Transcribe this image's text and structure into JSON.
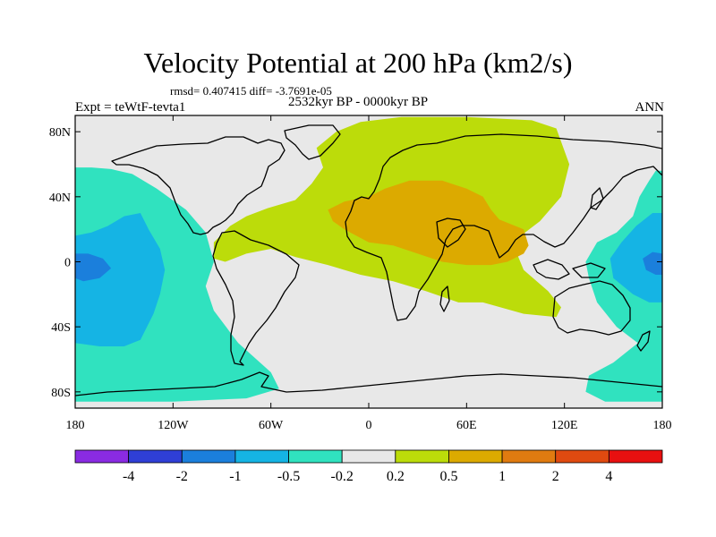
{
  "chart_data": {
    "type": "heatmap",
    "title": "Velocity Potential at 200 hPa (km2/s)",
    "stats_line": "rmsd= 0.407415 diff= -3.7691e-05",
    "period_label": "2532kyr BP - 0000kyr BP",
    "experiment_label": "Expt = teWtF-tevta1",
    "season_label": "ANN",
    "x_ticks": [
      {
        "lon": -180,
        "label": "180"
      },
      {
        "lon": -120,
        "label": "120W"
      },
      {
        "lon": -60,
        "label": "60W"
      },
      {
        "lon": 0,
        "label": "0"
      },
      {
        "lon": 60,
        "label": "60E"
      },
      {
        "lon": 120,
        "label": "120E"
      },
      {
        "lon": 180,
        "label": "180"
      }
    ],
    "y_ticks": [
      {
        "lat": 80,
        "label": "80N"
      },
      {
        "lat": 40,
        "label": "40N"
      },
      {
        "lat": 0,
        "label": "0"
      },
      {
        "lat": -40,
        "label": "40S"
      },
      {
        "lat": -80,
        "label": "80S"
      }
    ],
    "xlim": [
      -180,
      180
    ],
    "ylim": [
      -90,
      90
    ],
    "colorbar": {
      "colors": [
        "#8a2be2",
        "#2f3fd6",
        "#1b7fdc",
        "#15b4e4",
        "#30e2bf",
        "#e8e8e8",
        "#bcdc0a",
        "#dcaa00",
        "#e07b10",
        "#e04a10",
        "#e81010"
      ],
      "levels": [
        {
          "value": "-4",
          "index": 1
        },
        {
          "value": "-2",
          "index": 2
        },
        {
          "value": "-1",
          "index": 3
        },
        {
          "value": "-0.5",
          "index": 4
        },
        {
          "value": "-0.2",
          "index": 5
        },
        {
          "value": "0.2",
          "index": 6
        },
        {
          "value": "0.5",
          "index": 7
        },
        {
          "value": "1",
          "index": 8
        },
        {
          "value": "2",
          "index": 9
        },
        {
          "value": "4",
          "index": 10
        }
      ]
    },
    "regions": [
      {
        "level": "0.2 to 0.5",
        "color": "#bcdc0a",
        "pts": [
          [
            -95,
            2
          ],
          [
            -95,
            12
          ],
          [
            -85,
            22
          ],
          [
            -75,
            28
          ],
          [
            -62,
            33
          ],
          [
            -45,
            38
          ],
          [
            -35,
            48
          ],
          [
            -28,
            58
          ],
          [
            -32,
            70
          ],
          [
            -20,
            80
          ],
          [
            -5,
            86
          ],
          [
            20,
            89
          ],
          [
            60,
            89
          ],
          [
            100,
            87
          ],
          [
            115,
            82
          ],
          [
            123,
            60
          ],
          [
            118,
            40
          ],
          [
            105,
            25
          ],
          [
            88,
            12
          ],
          [
            95,
            -5
          ],
          [
            110,
            -18
          ],
          [
            118,
            -28
          ],
          [
            115,
            -34
          ],
          [
            95,
            -32
          ],
          [
            70,
            -25
          ],
          [
            55,
            -25
          ],
          [
            35,
            -18
          ],
          [
            15,
            -12
          ],
          [
            -5,
            -8
          ],
          [
            -25,
            -2
          ],
          [
            -45,
            3
          ],
          [
            -60,
            8
          ],
          [
            -75,
            5
          ],
          [
            -88,
            0
          ]
        ]
      },
      {
        "level": "0.5 to 1",
        "color": "#dcaa00",
        "pts": [
          [
            -25,
            32
          ],
          [
            -15,
            37
          ],
          [
            0,
            40
          ],
          [
            10,
            45
          ],
          [
            25,
            50
          ],
          [
            45,
            50
          ],
          [
            60,
            45
          ],
          [
            70,
            40
          ],
          [
            75,
            32
          ],
          [
            80,
            26
          ],
          [
            95,
            20
          ],
          [
            98,
            10
          ],
          [
            95,
            5
          ],
          [
            85,
            0
          ],
          [
            75,
            -2
          ],
          [
            60,
            -2
          ],
          [
            45,
            0
          ],
          [
            30,
            5
          ],
          [
            15,
            10
          ],
          [
            0,
            12
          ],
          [
            -15,
            20
          ],
          [
            -22,
            25
          ]
        ]
      },
      {
        "level": "-0.5 to -0.2",
        "color": "#30e2bf",
        "pts": [
          [
            -180,
            58
          ],
          [
            -170,
            58
          ],
          [
            -158,
            57
          ],
          [
            -145,
            54
          ],
          [
            -130,
            45
          ],
          [
            -112,
            32
          ],
          [
            -100,
            18
          ],
          [
            -95,
            0
          ],
          [
            -100,
            -15
          ],
          [
            -95,
            -30
          ],
          [
            -80,
            -50
          ],
          [
            -60,
            -68
          ],
          [
            -55,
            -78
          ],
          [
            -75,
            -84
          ],
          [
            -120,
            -86
          ],
          [
            -170,
            -86
          ],
          [
            -180,
            -86
          ]
        ]
      },
      {
        "level": "-1 to -0.5",
        "color": "#15b4e4",
        "pts": [
          [
            -180,
            16
          ],
          [
            -170,
            18
          ],
          [
            -160,
            22
          ],
          [
            -150,
            28
          ],
          [
            -140,
            30
          ],
          [
            -135,
            20
          ],
          [
            -128,
            8
          ],
          [
            -125,
            -5
          ],
          [
            -128,
            -20
          ],
          [
            -132,
            -32
          ],
          [
            -140,
            -48
          ],
          [
            -150,
            -52
          ],
          [
            -165,
            -52
          ],
          [
            -180,
            -50
          ]
        ]
      },
      {
        "level": "-2 to -1",
        "color": "#1b7fdc",
        "pts": [
          [
            -180,
            5
          ],
          [
            -172,
            5
          ],
          [
            -163,
            2
          ],
          [
            -158,
            -4
          ],
          [
            -165,
            -10
          ],
          [
            -175,
            -12
          ],
          [
            -180,
            -10
          ]
        ]
      },
      {
        "level": "-0.5 to -0.2",
        "color": "#30e2bf",
        "pts": [
          [
            180,
            56
          ],
          [
            176,
            56
          ],
          [
            172,
            50
          ],
          [
            166,
            40
          ],
          [
            162,
            28
          ],
          [
            152,
            18
          ],
          [
            140,
            12
          ],
          [
            133,
            0
          ],
          [
            135,
            -10
          ],
          [
            140,
            -25
          ],
          [
            152,
            -40
          ],
          [
            165,
            -50
          ],
          [
            150,
            -62
          ],
          [
            135,
            -70
          ],
          [
            133,
            -80
          ],
          [
            145,
            -86
          ],
          [
            180,
            -86
          ]
        ]
      },
      {
        "level": "-1 to -0.5",
        "color": "#15b4e4",
        "pts": [
          [
            180,
            30
          ],
          [
            174,
            30
          ],
          [
            164,
            22
          ],
          [
            155,
            12
          ],
          [
            148,
            2
          ],
          [
            150,
            -10
          ],
          [
            162,
            -20
          ],
          [
            172,
            -25
          ],
          [
            180,
            -25
          ]
        ]
      },
      {
        "level": "-2 to -1",
        "color": "#1b7fdc",
        "pts": [
          [
            180,
            5
          ],
          [
            174,
            6
          ],
          [
            168,
            2
          ],
          [
            170,
            -5
          ],
          [
            176,
            -8
          ],
          [
            180,
            -8
          ]
        ]
      }
    ]
  }
}
